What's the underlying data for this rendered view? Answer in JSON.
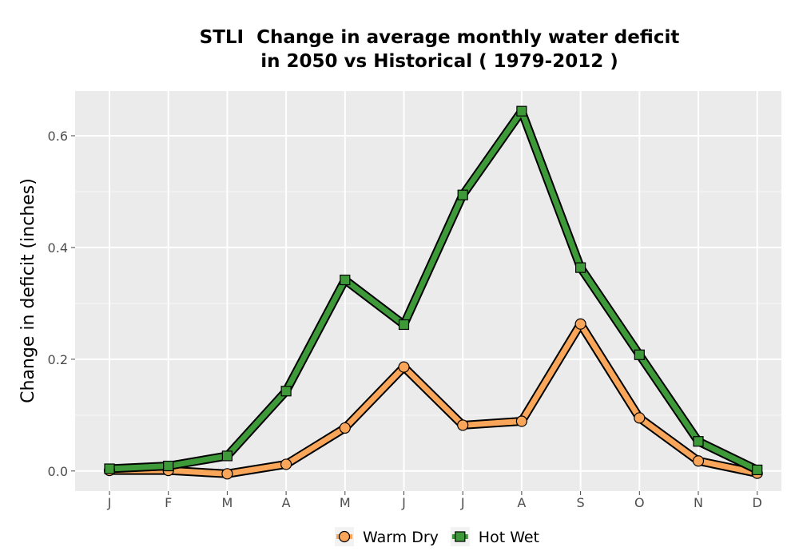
{
  "chart_data": {
    "type": "line",
    "title_line1": "STLI  Change in average monthly water deficit",
    "title_line2": "in 2050 vs Historical ( 1979-2012 )",
    "xlabel": "",
    "ylabel": "Change in deficit (inches)",
    "categories": [
      "J",
      "F",
      "M",
      "A",
      "M",
      "J",
      "J",
      "A",
      "S",
      "O",
      "N",
      "D"
    ],
    "ylim": [
      -0.036,
      0.68
    ],
    "yticks": [
      0.0,
      0.2,
      0.4,
      0.6
    ],
    "ytick_labels": [
      "0.0",
      "0.2",
      "0.4",
      "0.6"
    ],
    "grid": true,
    "legend_position": "bottom",
    "series": [
      {
        "name": "Warm Dry",
        "marker": "circle",
        "color": "#F9A65A",
        "values": [
          0.001,
          0.001,
          -0.005,
          0.012,
          0.077,
          0.186,
          0.082,
          0.089,
          0.263,
          0.095,
          0.018,
          -0.004
        ]
      },
      {
        "name": "Hot Wet",
        "marker": "square",
        "color": "#3E9A39",
        "values": [
          0.004,
          0.009,
          0.027,
          0.143,
          0.342,
          0.262,
          0.494,
          0.644,
          0.364,
          0.208,
          0.053,
          0.002
        ]
      }
    ]
  }
}
